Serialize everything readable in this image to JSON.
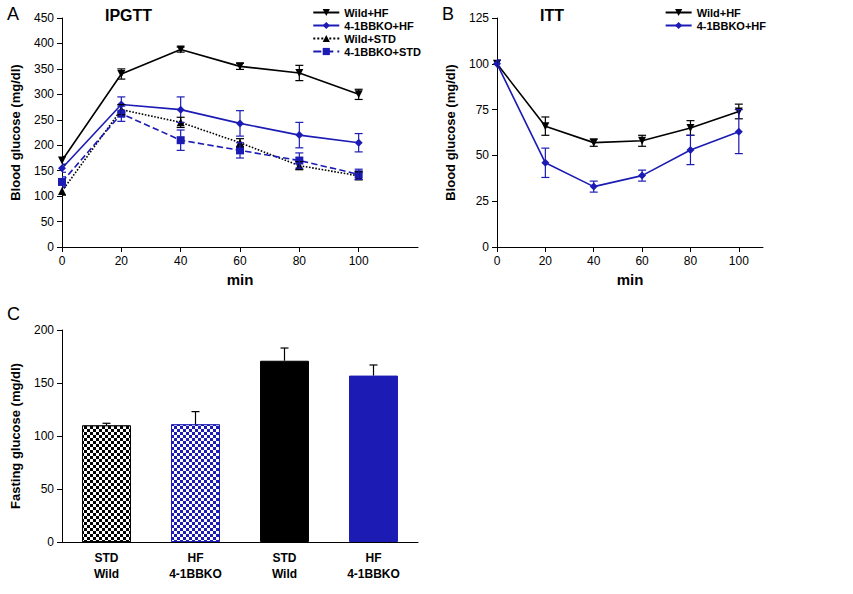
{
  "chart_data": [
    {
      "type": "line",
      "label": "A",
      "title": "IPGTT",
      "x_label": "min",
      "y_label": "Blood glucose (mg/dl)",
      "x": [
        0,
        20,
        40,
        60,
        80,
        100
      ],
      "xlim": [
        0,
        120
      ],
      "xticks": [
        0,
        20,
        40,
        60,
        80,
        100
      ],
      "ylim": [
        0,
        450
      ],
      "yticks": [
        0,
        50,
        100,
        150,
        200,
        250,
        300,
        350,
        400,
        450
      ],
      "grid": false,
      "legend": "upper right",
      "series": [
        {
          "name": "Wild+HF",
          "color": "#000000",
          "marker": "triangle-down",
          "line_style": "solid",
          "values": [
            170,
            340,
            388,
            355,
            342,
            300
          ],
          "errors": [
            8,
            10,
            5,
            6,
            15,
            10
          ]
        },
        {
          "name": "4-1BBKO+HF",
          "color": "#1c1cb5",
          "marker": "diamond",
          "line_style": "solid",
          "values": [
            155,
            280,
            270,
            243,
            220,
            205
          ],
          "errors": [
            8,
            15,
            25,
            25,
            25,
            18
          ]
        },
        {
          "name": "Wild+STD",
          "color": "#000000",
          "marker": "triangle",
          "line_style": "dotted",
          "values": [
            110,
            270,
            245,
            205,
            160,
            140
          ],
          "errors": [
            8,
            10,
            10,
            8,
            8,
            8
          ]
        },
        {
          "name": "4-1BBKO+STD",
          "color": "#1c1cb5",
          "marker": "square",
          "line_style": "dashed",
          "values": [
            128,
            262,
            210,
            190,
            170,
            143
          ],
          "errors": [
            10,
            15,
            20,
            15,
            15,
            10
          ]
        }
      ]
    },
    {
      "type": "line",
      "label": "B",
      "title": "ITT",
      "x_label": "min",
      "y_label": "Blood glucose (mg/dl)",
      "x": [
        0,
        20,
        40,
        60,
        80,
        100
      ],
      "xlim": [
        0,
        110
      ],
      "xticks": [
        0,
        20,
        40,
        60,
        80,
        100
      ],
      "ylim": [
        0,
        125
      ],
      "yticks": [
        0,
        25,
        50,
        75,
        100,
        125
      ],
      "grid": false,
      "legend": "upper right",
      "series": [
        {
          "name": "Wild+HF",
          "color": "#000000",
          "marker": "triangle-down",
          "line_style": "solid",
          "values": [
            100,
            66,
            57,
            58,
            65,
            74
          ],
          "errors": [
            2,
            5,
            2,
            3,
            4,
            4
          ]
        },
        {
          "name": "4-1BBKO+HF",
          "color": "#1c1cb5",
          "marker": "diamond",
          "line_style": "solid",
          "values": [
            100,
            46,
            33,
            39,
            53,
            63
          ],
          "errors": [
            2,
            8,
            3,
            3,
            8,
            12
          ]
        }
      ]
    },
    {
      "type": "bar",
      "label": "C",
      "y_label": "Fasting glucose (mg/dl)",
      "categories": [
        "STD\nWild",
        "HF\n4-1BBKO",
        "STD\nWild",
        "HF\n4-1BBKO"
      ],
      "values": [
        110,
        111,
        171,
        157
      ],
      "errors": [
        2,
        12,
        12,
        10
      ],
      "colors": [
        "#000000",
        "#1c1cb5",
        "#000000",
        "#1c1cb5"
      ],
      "ylim": [
        0,
        200
      ],
      "yticks": [
        0,
        50,
        100,
        150,
        200
      ],
      "grid": false
    }
  ]
}
